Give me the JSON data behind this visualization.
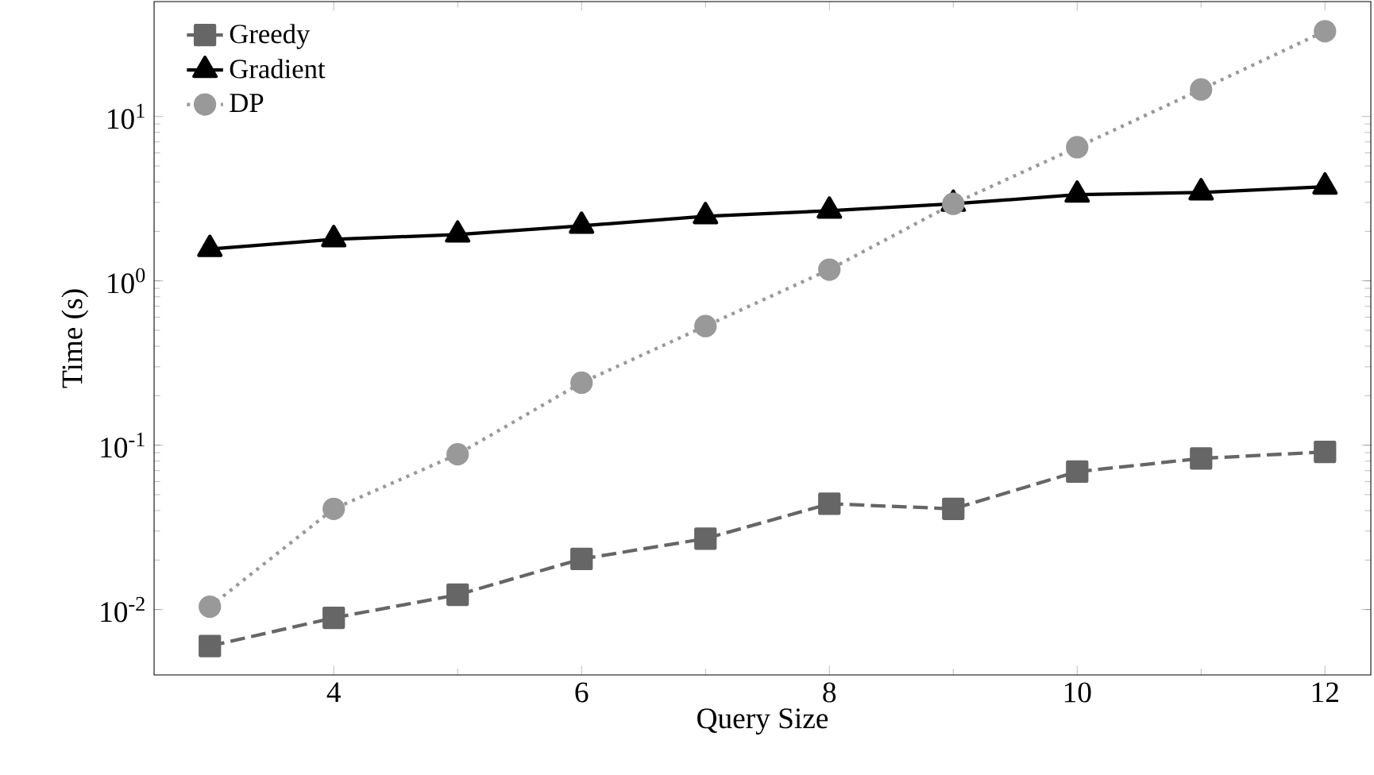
{
  "chart_data": {
    "type": "line",
    "xlabel": "Query Size",
    "ylabel": "Time (s)",
    "log": "y",
    "x": [
      3,
      4,
      5,
      6,
      7,
      8,
      9,
      10,
      11,
      12
    ],
    "series": [
      {
        "name": "Greedy",
        "color": "#666666",
        "line_style": "dashed",
        "marker": "square",
        "values": [
          0.006,
          0.0089,
          0.0123,
          0.0203,
          0.027,
          0.044,
          0.041,
          0.069,
          0.083,
          0.091
        ]
      },
      {
        "name": "Gradient",
        "color": "#000000",
        "line_style": "solid",
        "marker": "triangle",
        "values": [
          1.56,
          1.79,
          1.91,
          2.16,
          2.47,
          2.67,
          2.94,
          3.34,
          3.45,
          3.74
        ]
      },
      {
        "name": "DP",
        "color": "#999999",
        "line_style": "dotted",
        "marker": "circle",
        "values": [
          0.0104,
          0.041,
          0.088,
          0.24,
          0.53,
          1.17,
          2.94,
          6.5,
          14.6,
          33
        ]
      }
    ],
    "xlim": [
      2.55,
      12.37
    ],
    "ylim": [
      0.004,
      50
    ],
    "xticks": [
      4,
      6,
      8,
      10,
      12
    ],
    "yticks": [
      {
        "value": 0.01,
        "label": "10$^{-2}$"
      },
      {
        "value": 0.1,
        "label": "10$^{-1}$"
      },
      {
        "value": 1,
        "label": "10$^{0}$"
      },
      {
        "value": 10,
        "label": "10$^{1}$"
      }
    ],
    "legend": "top left",
    "grid": false
  }
}
